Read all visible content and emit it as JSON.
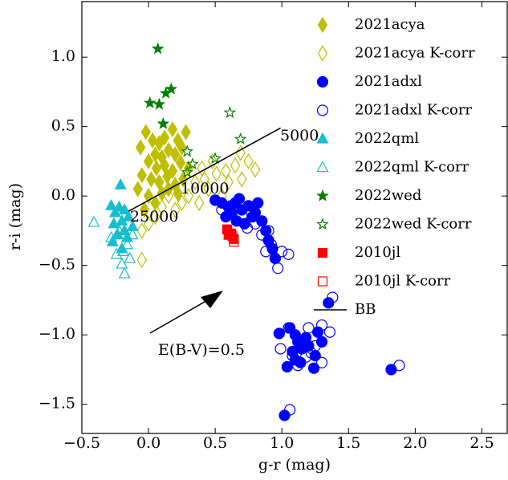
{
  "chart_data": {
    "type": "scatter",
    "xlabel": "g-r (mag)",
    "ylabel": "r-i (mag)",
    "xlim": [
      -0.5,
      2.69
    ],
    "ylim": [
      -1.71,
      1.4
    ],
    "xticks": [
      {
        "value": -0.5,
        "label": "−0.5"
      },
      {
        "value": 0,
        "label": "0.0"
      },
      0.5,
      {
        "value": 1,
        "label": "1.0"
      },
      1.5,
      {
        "value": 2,
        "label": "2.0"
      },
      2.5
    ],
    "yticks": [
      {
        "value": -1.5,
        "label": "−1.5"
      },
      {
        "value": -1,
        "label": "−1.0"
      },
      {
        "value": -0.5,
        "label": "−0.5"
      },
      {
        "value": 0,
        "label": "0.0"
      },
      0.5,
      {
        "value": 1,
        "label": "1.0"
      }
    ],
    "legend": "upper right",
    "annotations": [
      "5000",
      "10000",
      "25000",
      "E(B-V)=0.5"
    ],
    "series": [
      {
        "name": "2021acya",
        "color": "#bfbf00",
        "marker": "diamond",
        "filled": true,
        "x": [
          -0.02,
          -0.06,
          0.28,
          0.18,
          0.03,
          0.08,
          0.12,
          0.22,
          0.05,
          0.1,
          0.15,
          0.2,
          0.25,
          0.0,
          0.06,
          0.12,
          0.18,
          0.24,
          -0.05,
          0.02,
          0.08,
          0.14,
          0.2,
          0.26,
          -0.08,
          0.0,
          0.05,
          0.1,
          -0.03,
          0.3,
          0.15,
          0.22
        ],
        "values": [
          0.46,
          0.35,
          0.46,
          0.48,
          0.4,
          0.38,
          0.42,
          0.4,
          0.3,
          0.28,
          0.33,
          0.3,
          0.35,
          0.25,
          0.2,
          0.22,
          0.18,
          0.24,
          0.15,
          0.12,
          0.1,
          0.14,
          0.08,
          0.12,
          0.05,
          0.0,
          -0.05,
          0.02,
          -0.1,
          0.2,
          0.05,
          0.02
        ]
      },
      {
        "name": "2021acya K-corr",
        "color": "#bfbf00",
        "marker": "diamond",
        "filled": false,
        "x": [
          -0.05,
          0.69,
          0.8,
          0.51,
          0.6,
          0.7,
          0.45,
          0.55,
          0.4,
          0.35,
          0.3,
          0.25,
          0.2,
          0.15,
          0.1,
          0.05,
          0.0,
          -0.05,
          0.65,
          0.75,
          0.48,
          0.38,
          0.42,
          0.58
        ],
        "values": [
          -0.46,
          0.31,
          0.19,
          0.16,
          0.1,
          0.12,
          0.05,
          0.0,
          0.2,
          0.1,
          0.0,
          -0.05,
          -0.1,
          0.0,
          -0.08,
          -0.15,
          -0.2,
          -0.25,
          0.22,
          0.25,
          0.25,
          -0.05,
          0.12,
          0.18
        ]
      },
      {
        "name": "2021adxl",
        "color": "#0000ff",
        "marker": "circle",
        "filled": true,
        "x": [
          0.5,
          0.55,
          0.6,
          0.65,
          0.7,
          0.68,
          0.75,
          0.8,
          0.82,
          0.78,
          0.85,
          0.88,
          0.9,
          0.93,
          0.95,
          0.72,
          0.62,
          0.58,
          0.66,
          1.35,
          1.82,
          1.02,
          0.98,
          1.06,
          1.1,
          1.12,
          1.15,
          1.18,
          1.08,
          1.2,
          1.25,
          1.3,
          1.14,
          1.04,
          1.24,
          1.27,
          1.1
        ],
        "values": [
          -0.03,
          -0.05,
          -0.08,
          -0.05,
          -0.1,
          -0.02,
          -0.07,
          -0.12,
          -0.05,
          -0.15,
          -0.18,
          -0.25,
          -0.32,
          -0.38,
          -0.45,
          -0.2,
          -0.12,
          -0.15,
          -0.18,
          -0.77,
          -1.25,
          -1.58,
          -0.99,
          -0.95,
          -1.0,
          -1.05,
          -1.1,
          -1.02,
          -1.12,
          -1.08,
          -1.15,
          -1.05,
          -1.2,
          -1.23,
          -1.24,
          -0.98,
          -1.18
        ]
      },
      {
        "name": "2021adxl K-corr",
        "color": "#0000ff",
        "marker": "circle",
        "filled": false,
        "x": [
          0.55,
          0.62,
          0.7,
          0.74,
          0.8,
          0.85,
          0.9,
          0.92,
          0.97,
          1.05,
          1.0,
          0.88,
          1.38,
          1.88,
          1.06,
          1.05,
          1.2,
          1.3,
          1.36,
          1.15,
          1.25,
          1.18,
          1.3,
          1.12,
          1.08,
          1.22,
          0.99
        ],
        "values": [
          -0.1,
          -0.07,
          -0.14,
          -0.23,
          -0.2,
          -0.28,
          -0.25,
          -0.35,
          -0.52,
          -0.42,
          -0.4,
          -0.4,
          -0.73,
          -1.22,
          -1.54,
          -0.95,
          -0.95,
          -0.93,
          -0.98,
          -1.05,
          -1.08,
          -1.16,
          -1.2,
          -1.22,
          -1.15,
          -1.13,
          -1.1
        ]
      },
      {
        "name": "2022qml",
        "color": "#17becf",
        "marker": "triangle",
        "filled": true,
        "x": [
          -0.21,
          -0.28,
          -0.22,
          -0.18,
          -0.25,
          -0.15,
          -0.2,
          -0.26,
          -0.12,
          -0.18,
          -0.23,
          -0.16,
          -0.27,
          -0.2
        ],
        "values": [
          0.08,
          -0.07,
          -0.08,
          -0.1,
          -0.12,
          -0.15,
          -0.18,
          -0.2,
          -0.22,
          -0.25,
          -0.28,
          -0.3,
          -0.33,
          -0.38
        ]
      },
      {
        "name": "2022qml K-corr",
        "color": "#17becf",
        "marker": "triangle",
        "filled": false,
        "x": [
          -0.41,
          -0.18,
          -0.2,
          -0.14,
          -0.24,
          -0.28,
          -0.22,
          -0.16,
          -0.12,
          -0.19
        ],
        "values": [
          -0.19,
          -0.56,
          -0.49,
          -0.45,
          -0.42,
          -0.3,
          -0.25,
          -0.35,
          -0.28,
          -0.4
        ]
      },
      {
        "name": "2022wed",
        "color": "#008000",
        "marker": "star",
        "filled": true,
        "x": [
          0.07,
          0.01,
          0.08,
          0.13,
          0.17,
          0.11
        ],
        "values": [
          1.06,
          0.67,
          0.66,
          0.74,
          0.77,
          0.52
        ]
      },
      {
        "name": "2022wed K-corr",
        "color": "#008000",
        "marker": "star",
        "filled": false,
        "x": [
          0.61,
          0.69,
          0.5,
          0.29,
          0.29,
          0.33
        ],
        "values": [
          0.6,
          0.41,
          0.27,
          0.32,
          0.17,
          0.23
        ]
      },
      {
        "name": "2010jl",
        "color": "#ff0000",
        "marker": "square",
        "filled": true,
        "x": [
          0.59,
          0.62,
          0.64,
          0.6
        ],
        "values": [
          -0.24,
          -0.27,
          -0.31,
          -0.28
        ]
      },
      {
        "name": "2010jl K-corr",
        "color": "#ff0000",
        "marker": "square",
        "filled": false,
        "x": [
          0.64,
          0.63
        ],
        "values": [
          -0.33,
          -0.29
        ]
      },
      {
        "name": "BB",
        "color": "#000000",
        "marker": "line",
        "filled": false,
        "x": [
          -0.15,
          0.99
        ],
        "values": [
          -0.11,
          0.49
        ]
      }
    ]
  }
}
